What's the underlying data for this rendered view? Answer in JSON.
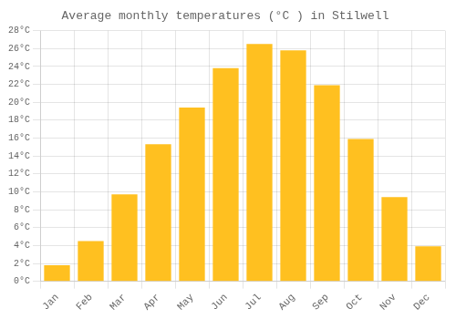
{
  "chart_data": {
    "type": "bar",
    "title": "Average monthly temperatures (°C ) in Stilwell",
    "categories": [
      "Jan",
      "Feb",
      "Mar",
      "Apr",
      "May",
      "Jun",
      "Jul",
      "Aug",
      "Sep",
      "Oct",
      "Nov",
      "Dec"
    ],
    "values": [
      1.8,
      4.5,
      9.7,
      15.3,
      19.4,
      23.8,
      26.5,
      25.8,
      21.9,
      15.9,
      9.4,
      3.9
    ],
    "color": "#FFC020",
    "ylim": [
      0,
      28
    ],
    "yticks": [
      {
        "value": 0,
        "label": "0°C"
      },
      {
        "value": 2,
        "label": "2°C"
      },
      {
        "value": 4,
        "label": "4°C"
      },
      {
        "value": 6,
        "label": "6°C"
      },
      {
        "value": 8,
        "label": "8°C"
      },
      {
        "value": 10,
        "label": "10°C"
      },
      {
        "value": 12,
        "label": "12°C"
      },
      {
        "value": 14,
        "label": "14°C"
      },
      {
        "value": 16,
        "label": "16°C"
      },
      {
        "value": 18,
        "label": "18°C"
      },
      {
        "value": 20,
        "label": "20°C"
      },
      {
        "value": 22,
        "label": "22°C"
      },
      {
        "value": 24,
        "label": "24°C"
      },
      {
        "value": 26,
        "label": "26°C"
      },
      {
        "value": 28,
        "label": "28°C"
      }
    ],
    "grid": true
  }
}
